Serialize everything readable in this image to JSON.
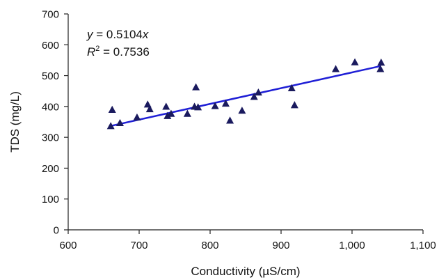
{
  "chart_data": {
    "type": "scatter",
    "xlabel": "Conductivity (µS/cm)",
    "ylabel": "TDS (mg/L)",
    "xlim": [
      600,
      1100
    ],
    "ylim": [
      0,
      700
    ],
    "x_ticks": [
      600,
      700,
      800,
      900,
      1000,
      1100
    ],
    "x_tick_labels": [
      "600",
      "700",
      "800",
      "900",
      "1,000",
      "1,100"
    ],
    "y_ticks": [
      0,
      100,
      200,
      300,
      400,
      500,
      600,
      700
    ],
    "y_tick_labels": [
      "0",
      "100",
      "200",
      "300",
      "400",
      "500",
      "600",
      "700"
    ],
    "grid": false,
    "marker": "triangle",
    "marker_color": "#1a1a5e",
    "series": [
      {
        "x": [
          660,
          662,
          673,
          697,
          712,
          715,
          738,
          740,
          745,
          768,
          778,
          780,
          783,
          807,
          822,
          828,
          845,
          862,
          868,
          915,
          919,
          977,
          1004,
          1040,
          1041
        ],
        "y": [
          337,
          390,
          347,
          365,
          407,
          392,
          400,
          370,
          377,
          377,
          400,
          463,
          398,
          402,
          410,
          355,
          387,
          432,
          446,
          460,
          405,
          522,
          544,
          522,
          543
        ]
      }
    ],
    "trendline": {
      "slope": 0.5104,
      "x_range": [
        660,
        1041
      ],
      "color": "#1f1fd6"
    },
    "annotation": {
      "equation": {
        "lhs": "y",
        "eq": " = 0.5104",
        "var": "x"
      },
      "r2": {
        "base": "R",
        "exp": "2",
        "rest": " = 0.7536"
      }
    }
  }
}
